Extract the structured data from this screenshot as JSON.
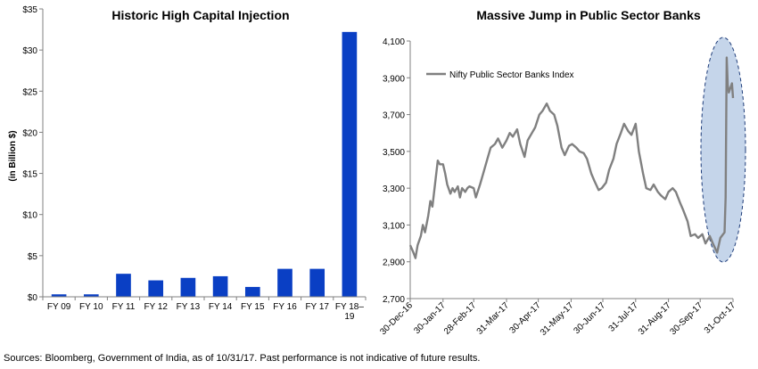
{
  "footer": "Sources: Bloomberg, Government of India, as of 10/31/17. Past performance is not indicative of future results.",
  "chart_data": [
    {
      "type": "bar",
      "title": "Historic High Capital Injection",
      "xlabel": "",
      "ylabel": "(in Billion $)",
      "categories": [
        "FY 09",
        "FY 10",
        "FY 11",
        "FY 12",
        "FY 13",
        "FY 14",
        "FY 15",
        "FY 16",
        "FY 17",
        "FY 18–19"
      ],
      "values": [
        0.3,
        0.3,
        2.8,
        2.0,
        2.3,
        2.5,
        1.2,
        3.4,
        3.4,
        32.2
      ],
      "ylim": [
        0,
        35
      ],
      "yticks": [
        0,
        5,
        10,
        15,
        20,
        25,
        30,
        35
      ],
      "ytick_labels": [
        "$0",
        "$5",
        "$10",
        "$15",
        "$20",
        "$25",
        "$30",
        "$35"
      ],
      "bar_color": "#0a3fc4",
      "grid": false
    },
    {
      "type": "line",
      "title": "Massive Jump in Public Sector Banks",
      "xlabel": "",
      "ylabel": "",
      "legend": "top-left",
      "ylim": [
        2700,
        4100
      ],
      "yticks": [
        2700,
        2900,
        3100,
        3300,
        3500,
        3700,
        3900,
        4100
      ],
      "ytick_labels": [
        "2,700",
        "2,900",
        "3,100",
        "3,300",
        "3,500",
        "3,700",
        "3,900",
        "4,100"
      ],
      "xlim": [
        "2016-12-30",
        "2017-10-31"
      ],
      "xticks": [
        "2016-12-30",
        "2017-01-30",
        "2017-02-28",
        "2017-03-31",
        "2017-04-30",
        "2017-05-31",
        "2017-06-30",
        "2017-07-31",
        "2017-08-31",
        "2017-09-30",
        "2017-10-31"
      ],
      "xtick_labels": [
        "30-Dec-16",
        "30-Jan-17",
        "28-Feb-17",
        "31-Mar-17",
        "30-Apr-17",
        "31-May-17",
        "30-Jun-17",
        "31-Jul-17",
        "31-Aug-17",
        "30-Sep-17",
        "31-Oct-17"
      ],
      "highlight_color": "#c5d5ea",
      "series": [
        {
          "name": "Nifty Public Sector Banks Index",
          "color": "#808080",
          "x": [
            "2016-12-30",
            "2017-01-02",
            "2017-01-04",
            "2017-01-06",
            "2017-01-09",
            "2017-01-11",
            "2017-01-13",
            "2017-01-16",
            "2017-01-18",
            "2017-01-20",
            "2017-01-23",
            "2017-01-25",
            "2017-01-27",
            "2017-01-30",
            "2017-02-01",
            "2017-02-03",
            "2017-02-06",
            "2017-02-08",
            "2017-02-10",
            "2017-02-13",
            "2017-02-15",
            "2017-02-17",
            "2017-02-20",
            "2017-02-22",
            "2017-02-24",
            "2017-02-28",
            "2017-03-02",
            "2017-03-06",
            "2017-03-09",
            "2017-03-13",
            "2017-03-16",
            "2017-03-20",
            "2017-03-23",
            "2017-03-27",
            "2017-03-31",
            "2017-04-03",
            "2017-04-06",
            "2017-04-10",
            "2017-04-13",
            "2017-04-17",
            "2017-04-20",
            "2017-04-24",
            "2017-04-27",
            "2017-05-01",
            "2017-05-04",
            "2017-05-08",
            "2017-05-11",
            "2017-05-15",
            "2017-05-18",
            "2017-05-22",
            "2017-05-25",
            "2017-05-29",
            "2017-06-01",
            "2017-06-05",
            "2017-06-08",
            "2017-06-12",
            "2017-06-15",
            "2017-06-19",
            "2017-06-22",
            "2017-06-26",
            "2017-06-29",
            "2017-07-03",
            "2017-07-06",
            "2017-07-10",
            "2017-07-13",
            "2017-07-17",
            "2017-07-20",
            "2017-07-24",
            "2017-07-27",
            "2017-07-31",
            "2017-08-03",
            "2017-08-07",
            "2017-08-10",
            "2017-08-14",
            "2017-08-17",
            "2017-08-21",
            "2017-08-24",
            "2017-08-28",
            "2017-08-31",
            "2017-09-04",
            "2017-09-07",
            "2017-09-11",
            "2017-09-14",
            "2017-09-18",
            "2017-09-21",
            "2017-09-25",
            "2017-09-28",
            "2017-10-02",
            "2017-10-05",
            "2017-10-09",
            "2017-10-12",
            "2017-10-16",
            "2017-10-19",
            "2017-10-23",
            "2017-10-24",
            "2017-10-25",
            "2017-10-26",
            "2017-10-27",
            "2017-10-30",
            "2017-10-31"
          ],
          "values": [
            2990,
            2950,
            2920,
            2990,
            3040,
            3100,
            3060,
            3150,
            3230,
            3200,
            3350,
            3450,
            3430,
            3430,
            3380,
            3320,
            3270,
            3300,
            3280,
            3310,
            3250,
            3300,
            3280,
            3300,
            3310,
            3300,
            3250,
            3320,
            3380,
            3460,
            3520,
            3540,
            3570,
            3520,
            3560,
            3600,
            3580,
            3620,
            3540,
            3470,
            3560,
            3600,
            3630,
            3700,
            3720,
            3760,
            3720,
            3700,
            3640,
            3520,
            3480,
            3530,
            3540,
            3520,
            3500,
            3490,
            3460,
            3380,
            3340,
            3290,
            3300,
            3330,
            3400,
            3460,
            3540,
            3600,
            3650,
            3610,
            3590,
            3650,
            3500,
            3380,
            3300,
            3290,
            3320,
            3280,
            3260,
            3240,
            3280,
            3300,
            3280,
            3220,
            3180,
            3120,
            3040,
            3050,
            3030,
            3050,
            3000,
            3040,
            3000,
            2950,
            3030,
            3060,
            3250,
            4010,
            3860,
            3820,
            3870,
            3790
          ]
        }
      ]
    }
  ]
}
